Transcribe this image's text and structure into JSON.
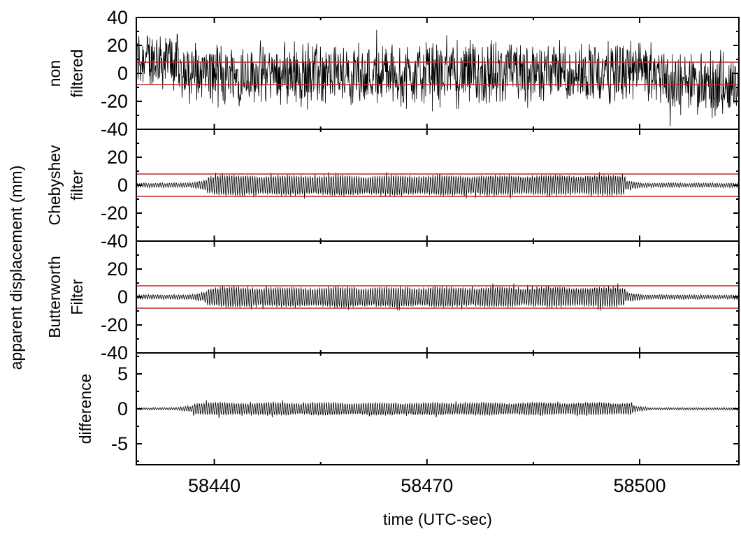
{
  "chart_data": {
    "type": "line",
    "xlabel": "time (UTC-sec)",
    "ylabel": "apparent displacement (mm)",
    "xlim": [
      58429,
      58514
    ],
    "x_ticks": [
      58440,
      58470,
      58500
    ],
    "x_tick_labels": [
      "58440",
      "58470",
      "58500"
    ],
    "shared_x_axis": true,
    "grid": false,
    "colors": {
      "signal": "#000000",
      "threshold": "#c0282d",
      "frame": "#000000"
    },
    "panels": [
      {
        "id": "non-filtered",
        "label_lines": [
          "non",
          "filtered"
        ],
        "ylim": [
          -40,
          40
        ],
        "y_ticks": [
          40,
          20,
          0,
          -20,
          -40
        ],
        "y_tick_labels": [
          "40",
          "20",
          "0",
          "-20",
          "-40"
        ],
        "threshold_lines": [
          8,
          -8
        ],
        "series": [
          {
            "description": "dense noise, amplitude about ±25 mm, offset +10 mm before 58435 and -8 mm after 58504",
            "approx_envelope_mm": 25
          }
        ]
      },
      {
        "id": "chebyshev",
        "label_lines": [
          "Chebyshev",
          "filter"
        ],
        "ylim": [
          -40,
          40
        ],
        "y_ticks": [
          20,
          0,
          -20,
          -40
        ],
        "y_tick_labels": [
          "20",
          "0",
          "-20",
          "-40"
        ],
        "threshold_lines": [
          8,
          -8
        ],
        "series": [
          {
            "description": "oscillation with amplitude about ±8 mm between 58439 and 58498, about ±2 mm outside",
            "burst_start": 58439,
            "burst_end": 58498,
            "burst_amplitude_mm": 8,
            "background_amplitude_mm": 2
          }
        ]
      },
      {
        "id": "butterworth",
        "label_lines": [
          "Butterworth",
          "Filter"
        ],
        "ylim": [
          -40,
          40
        ],
        "y_ticks": [
          20,
          0,
          -20,
          -40
        ],
        "y_tick_labels": [
          "20",
          "0",
          "-20",
          "-40"
        ],
        "threshold_lines": [
          8,
          -8
        ],
        "series": [
          {
            "description": "oscillation with amplitude about ±8 mm between 58439 and 58498, about ±2 mm outside",
            "burst_start": 58439,
            "burst_end": 58498,
            "burst_amplitude_mm": 8,
            "background_amplitude_mm": 2
          }
        ]
      },
      {
        "id": "difference",
        "label_lines": [
          "difference"
        ],
        "ylim": [
          -8,
          8
        ],
        "y_ticks": [
          5,
          0,
          -5
        ],
        "y_tick_labels": [
          "5",
          "0",
          "-5"
        ],
        "threshold_lines": [],
        "series": [
          {
            "description": "difference about ±1 mm, peaks up to about 1.5 mm between 58437 and 58499",
            "burst_start": 58437,
            "burst_end": 58499,
            "burst_amplitude_mm": 1,
            "background_amplitude_mm": 0.2
          }
        ]
      }
    ]
  }
}
